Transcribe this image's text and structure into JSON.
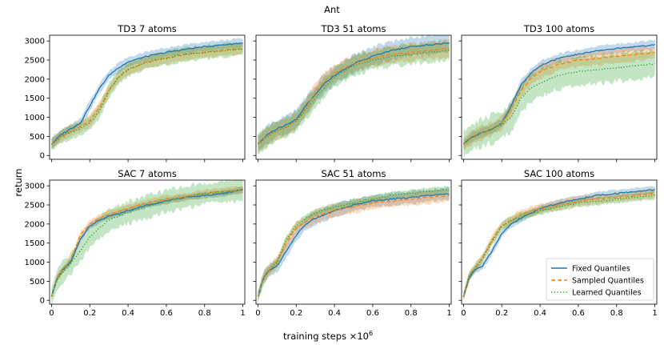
{
  "figure": {
    "suptitle": "Ant",
    "xlabel": "training steps ×10",
    "xlabel_exp": "6",
    "ylabel": "return"
  },
  "legend": {
    "location": "lower-right of SAC 100 atoms panel",
    "entries": [
      {
        "name": "Fixed Quantiles",
        "color": "#1f77b4",
        "style": "solid"
      },
      {
        "name": "Sampled Quantiles",
        "color": "#ff7f0e",
        "style": "dashed"
      },
      {
        "name": "Learned Quantiles",
        "color": "#2ca02c",
        "style": "dotted"
      }
    ]
  },
  "chart_data": [
    {
      "type": "line",
      "title": "TD3 7 atoms",
      "xlim": [
        0,
        1
      ],
      "ylim": [
        0,
        3000
      ],
      "x": [
        0,
        0.05,
        0.1,
        0.15,
        0.2,
        0.25,
        0.3,
        0.35,
        0.4,
        0.5,
        0.6,
        0.7,
        0.8,
        0.9,
        1.0
      ],
      "series": [
        {
          "name": "Fixed Quantiles",
          "values": [
            300,
            550,
            700,
            850,
            1300,
            1750,
            2100,
            2300,
            2450,
            2600,
            2700,
            2780,
            2850,
            2900,
            2950
          ],
          "band": 150
        },
        {
          "name": "Sampled Quantiles",
          "values": [
            300,
            500,
            650,
            750,
            900,
            1250,
            1700,
            2050,
            2250,
            2450,
            2550,
            2650,
            2700,
            2750,
            2800
          ],
          "band": 180
        },
        {
          "name": "Learned Quantiles",
          "values": [
            300,
            500,
            600,
            700,
            850,
            1150,
            1700,
            2050,
            2250,
            2450,
            2550,
            2650,
            2700,
            2750,
            2800
          ],
          "band": 220
        }
      ]
    },
    {
      "type": "line",
      "title": "TD3 51 atoms",
      "xlim": [
        0,
        1
      ],
      "ylim": [
        0,
        3000
      ],
      "x": [
        0,
        0.05,
        0.1,
        0.15,
        0.2,
        0.25,
        0.3,
        0.35,
        0.4,
        0.5,
        0.6,
        0.7,
        0.8,
        0.9,
        1.0
      ],
      "series": [
        {
          "name": "Fixed Quantiles",
          "values": [
            300,
            550,
            700,
            800,
            950,
            1300,
            1600,
            1900,
            2100,
            2400,
            2600,
            2750,
            2850,
            2900,
            2950
          ],
          "band": 300
        },
        {
          "name": "Sampled Quantiles",
          "values": [
            300,
            500,
            650,
            750,
            900,
            1250,
            1650,
            1950,
            2150,
            2400,
            2550,
            2650,
            2700,
            2750,
            2800
          ],
          "band": 280
        },
        {
          "name": "Learned Quantiles",
          "values": [
            300,
            500,
            650,
            750,
            900,
            1200,
            1500,
            1800,
            2050,
            2350,
            2500,
            2600,
            2650,
            2700,
            2750
          ],
          "band": 320
        }
      ]
    },
    {
      "type": "line",
      "title": "TD3 100 atoms",
      "xlim": [
        0,
        1
      ],
      "ylim": [
        0,
        3000
      ],
      "x": [
        0,
        0.05,
        0.1,
        0.15,
        0.2,
        0.25,
        0.3,
        0.35,
        0.4,
        0.5,
        0.6,
        0.7,
        0.8,
        0.9,
        1.0
      ],
      "series": [
        {
          "name": "Fixed Quantiles",
          "values": [
            300,
            500,
            600,
            700,
            850,
            1300,
            1850,
            2150,
            2350,
            2550,
            2650,
            2750,
            2800,
            2850,
            2900
          ],
          "band": 150
        },
        {
          "name": "Sampled Quantiles",
          "values": [
            300,
            500,
            600,
            700,
            850,
            1200,
            1700,
            2000,
            2200,
            2400,
            2500,
            2550,
            2600,
            2650,
            2700
          ],
          "band": 220
        },
        {
          "name": "Learned Quantiles",
          "values": [
            300,
            500,
            600,
            700,
            800,
            1000,
            1500,
            1750,
            1900,
            2100,
            2200,
            2250,
            2300,
            2350,
            2400
          ],
          "band": 450
        }
      ]
    },
    {
      "type": "line",
      "title": "SAC 7 atoms",
      "xlim": [
        0,
        1
      ],
      "ylim": [
        0,
        3000
      ],
      "x": [
        0,
        0.03,
        0.06,
        0.1,
        0.15,
        0.2,
        0.25,
        0.3,
        0.4,
        0.5,
        0.6,
        0.7,
        0.8,
        0.9,
        1.0
      ],
      "series": [
        {
          "name": "Fixed Quantiles",
          "values": [
            100,
            600,
            800,
            1000,
            1600,
            1950,
            2100,
            2200,
            2350,
            2500,
            2600,
            2700,
            2750,
            2800,
            2900
          ],
          "band": 100
        },
        {
          "name": "Sampled Quantiles",
          "values": [
            100,
            600,
            800,
            1050,
            1700,
            2000,
            2150,
            2250,
            2400,
            2550,
            2650,
            2700,
            2800,
            2850,
            2900
          ],
          "band": 120
        },
        {
          "name": "Learned Quantiles",
          "values": [
            100,
            550,
            750,
            950,
            1300,
            1650,
            1900,
            2100,
            2300,
            2450,
            2600,
            2700,
            2800,
            2850,
            2900
          ],
          "band": 350
        }
      ]
    },
    {
      "type": "line",
      "title": "SAC 51 atoms",
      "xlim": [
        0,
        1
      ],
      "ylim": [
        0,
        3000
      ],
      "x": [
        0,
        0.03,
        0.06,
        0.1,
        0.15,
        0.2,
        0.25,
        0.3,
        0.4,
        0.5,
        0.6,
        0.7,
        0.8,
        0.9,
        1.0
      ],
      "series": [
        {
          "name": "Fixed Quantiles",
          "values": [
            100,
            600,
            800,
            900,
            1300,
            1700,
            2000,
            2150,
            2350,
            2500,
            2600,
            2650,
            2700,
            2750,
            2800
          ],
          "band": 200
        },
        {
          "name": "Sampled Quantiles",
          "values": [
            100,
            600,
            800,
            1000,
            1500,
            1900,
            2050,
            2200,
            2350,
            2450,
            2550,
            2600,
            2650,
            2700,
            2750
          ],
          "band": 200
        },
        {
          "name": "Learned Quantiles",
          "values": [
            100,
            600,
            800,
            1000,
            1600,
            1950,
            2150,
            2300,
            2450,
            2550,
            2650,
            2750,
            2800,
            2850,
            2900
          ],
          "band": 120
        }
      ]
    },
    {
      "type": "line",
      "title": "SAC 100 atoms",
      "xlim": [
        0,
        1
      ],
      "ylim": [
        0,
        3000
      ],
      "x": [
        0,
        0.03,
        0.06,
        0.1,
        0.15,
        0.2,
        0.25,
        0.3,
        0.4,
        0.5,
        0.6,
        0.7,
        0.8,
        0.9,
        1.0
      ],
      "series": [
        {
          "name": "Fixed Quantiles",
          "values": [
            100,
            600,
            800,
            900,
            1300,
            1750,
            2000,
            2150,
            2400,
            2550,
            2650,
            2750,
            2800,
            2850,
            2900
          ],
          "band": 120
        },
        {
          "name": "Sampled Quantiles",
          "values": [
            100,
            650,
            850,
            1100,
            1600,
            1950,
            2100,
            2250,
            2400,
            2500,
            2600,
            2650,
            2700,
            2750,
            2800
          ],
          "band": 150
        },
        {
          "name": "Learned Quantiles",
          "values": [
            100,
            650,
            850,
            1100,
            1550,
            1950,
            2100,
            2200,
            2350,
            2450,
            2550,
            2600,
            2650,
            2700,
            2750
          ],
          "band": 130
        }
      ]
    }
  ]
}
